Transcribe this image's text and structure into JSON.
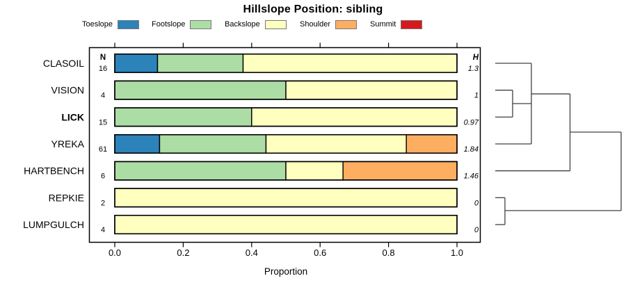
{
  "chart_data": {
    "type": "bar",
    "variant": "horizontal-stacked-proportion",
    "title": "Hillslope Position: sibling",
    "xlabel": "Proportion",
    "xlim": [
      0,
      1
    ],
    "xticks": [
      "0.0",
      "0.2",
      "0.4",
      "0.6",
      "0.8",
      "1.0"
    ],
    "grid": false,
    "legend_position": "top",
    "legend": [
      {
        "label": "Toeslope",
        "color": "#2B83BA"
      },
      {
        "label": "Footslope",
        "color": "#ABDDA4"
      },
      {
        "label": "Backslope",
        "color": "#FFFFBF"
      },
      {
        "label": "Shoulder",
        "color": "#FDAE61"
      },
      {
        "label": "Summit",
        "color": "#D7191C"
      }
    ],
    "columns": {
      "n_header": "N",
      "h_header": "H"
    },
    "rows": [
      {
        "label": "CLASOIL",
        "bold": false,
        "n": "16",
        "h": "1.3",
        "segments": [
          {
            "name": "Toeslope",
            "value": 0.125
          },
          {
            "name": "Footslope",
            "value": 0.25
          },
          {
            "name": "Backslope",
            "value": 0.625
          }
        ]
      },
      {
        "label": "VISION",
        "bold": false,
        "n": "4",
        "h": "1",
        "segments": [
          {
            "name": "Footslope",
            "value": 0.5
          },
          {
            "name": "Backslope",
            "value": 0.5
          }
        ]
      },
      {
        "label": "LICK",
        "bold": true,
        "n": "15",
        "h": "0.97",
        "segments": [
          {
            "name": "Footslope",
            "value": 0.4
          },
          {
            "name": "Backslope",
            "value": 0.6
          }
        ]
      },
      {
        "label": "YREKA",
        "bold": false,
        "n": "61",
        "h": "1.84",
        "segments": [
          {
            "name": "Toeslope",
            "value": 0.131
          },
          {
            "name": "Footslope",
            "value": 0.311
          },
          {
            "name": "Backslope",
            "value": 0.41
          },
          {
            "name": "Shoulder",
            "value": 0.148
          }
        ]
      },
      {
        "label": "HARTBENCH",
        "bold": false,
        "n": "6",
        "h": "1.46",
        "segments": [
          {
            "name": "Footslope",
            "value": 0.5
          },
          {
            "name": "Backslope",
            "value": 0.167
          },
          {
            "name": "Shoulder",
            "value": 0.333
          }
        ]
      },
      {
        "label": "REPKIE",
        "bold": false,
        "n": "2",
        "h": "0",
        "segments": [
          {
            "name": "Backslope",
            "value": 1.0
          }
        ]
      },
      {
        "label": "LUMPGULCH",
        "bold": false,
        "n": "4",
        "h": "0",
        "segments": [
          {
            "name": "Backslope",
            "value": 1.0
          }
        ]
      }
    ],
    "dendrogram": {
      "orientation": "right",
      "segments": [
        [
          0.0,
          0,
          0.287,
          0
        ],
        [
          0.0,
          1,
          0.138,
          1
        ],
        [
          0.0,
          2,
          0.138,
          2
        ],
        [
          0.138,
          1,
          0.138,
          2
        ],
        [
          0.138,
          1.5,
          0.287,
          1.5
        ],
        [
          0.287,
          0,
          0.287,
          3
        ],
        [
          0.0,
          3,
          0.287,
          3
        ],
        [
          0.287,
          1.14,
          0.594,
          1.14
        ],
        [
          0.594,
          1.14,
          0.594,
          4
        ],
        [
          0.0,
          4,
          0.594,
          4
        ],
        [
          0.594,
          2.56,
          1.0,
          2.56
        ],
        [
          1.0,
          2.56,
          1.0,
          5.48
        ],
        [
          0.0,
          5,
          0.077,
          5
        ],
        [
          0.077,
          5,
          0.077,
          6
        ],
        [
          0.0,
          6,
          0.077,
          6
        ],
        [
          0.077,
          5.48,
          1.0,
          5.48
        ]
      ]
    },
    "line_color": "#404040",
    "bar_stroke": "#000000"
  }
}
